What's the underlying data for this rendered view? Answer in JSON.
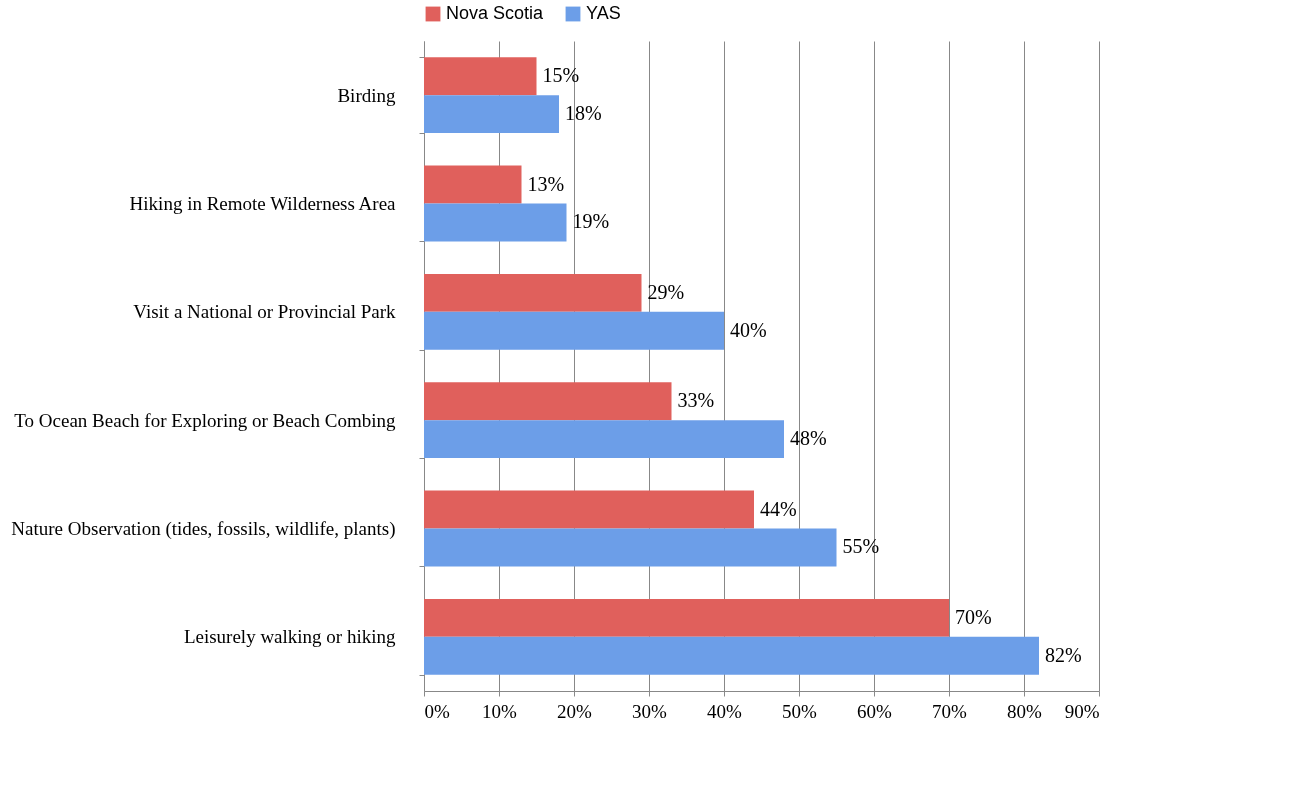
{
  "chart_data": {
    "type": "bar",
    "orientation": "horizontal",
    "categories": [
      "Birding",
      "Hiking in Remote Wilderness Area",
      "Visit a National or Provincial Park",
      "To Ocean Beach for Exploring or Beach Combing",
      "Nature Observation (tides, fossils, wildlife, plants)",
      "Leisurely walking or hiking"
    ],
    "series": [
      {
        "name": "Nova Scotia",
        "color": "#e0605c",
        "values": [
          15,
          13,
          29,
          33,
          44,
          70
        ],
        "value_labels": [
          "15%",
          "13%",
          "29%",
          "33%",
          "44%",
          "70%"
        ]
      },
      {
        "name": "YAS",
        "color": "#6c9ee8",
        "values": [
          18,
          19,
          40,
          48,
          55,
          82
        ],
        "value_labels": [
          "18%",
          "19%",
          "40%",
          "48%",
          "55%",
          "82%"
        ]
      }
    ],
    "xlim": [
      0,
      90
    ],
    "xticks": [
      {
        "value": 0,
        "label": "0%"
      },
      {
        "value": 10,
        "label": "10%"
      },
      {
        "value": 20,
        "label": "20%"
      },
      {
        "value": 30,
        "label": "30%"
      },
      {
        "value": 40,
        "label": "40%"
      },
      {
        "value": 50,
        "label": "50%"
      },
      {
        "value": 60,
        "label": "60%"
      },
      {
        "value": 70,
        "label": "70%"
      },
      {
        "value": 80,
        "label": "80%"
      },
      {
        "value": 90,
        "label": "90%"
      }
    ],
    "grid": "x",
    "legend": "top"
  }
}
